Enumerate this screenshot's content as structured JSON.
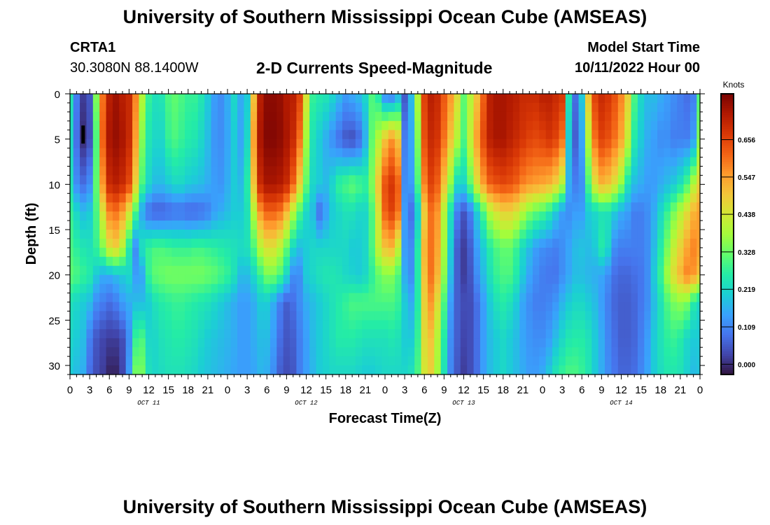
{
  "header": {
    "title": "University of Southern Mississippi Ocean Cube (AMSEAS)",
    "station_id": "CRTA1",
    "station_coords": "30.3080N  88.1400W",
    "plot_title": "2-D Currents Speed-Magnitude",
    "model_start_label": "Model Start Time",
    "model_start_value": "10/11/2022 Hour 00"
  },
  "footer": {
    "title": "University of Southern Mississippi Ocean Cube (AMSEAS)"
  },
  "chart_data": {
    "type": "heatmap",
    "title": "2-D Currents Speed-Magnitude",
    "xlabel": "Forecast Time(Z)",
    "ylabel": "Depth (ft)",
    "x_tick_labels": [
      "0",
      "3",
      "6",
      "9",
      "12",
      "15",
      "18",
      "21",
      "0",
      "3",
      "6",
      "9",
      "12",
      "15",
      "18",
      "21",
      "0",
      "3",
      "6",
      "9",
      "12",
      "15",
      "18",
      "21",
      "0",
      "3",
      "6",
      "9",
      "12",
      "15",
      "18",
      "21",
      "0"
    ],
    "x_day_labels": [
      "OCT 11",
      "OCT 12",
      "OCT 13",
      "OCT 14"
    ],
    "xlim_hours": [
      0,
      96
    ],
    "y_tick_labels": [
      "0",
      "5",
      "10",
      "15",
      "20",
      "25",
      "30"
    ],
    "ylim_ft": [
      0,
      31
    ],
    "y_inverted": true,
    "colorbar": {
      "unit_label": "Knots",
      "tick_labels": [
        "0.656",
        "0.547",
        "0.438",
        "0.328",
        "0.219",
        "0.109",
        "0.000"
      ],
      "range": [
        -0.03,
        0.79
      ],
      "colors": [
        "#30123b",
        "#4145ab",
        "#4675ed",
        "#39a2fc",
        "#1bcfd4",
        "#24eca6",
        "#61fc6c",
        "#a4fc3b",
        "#d1e834",
        "#f3c63a",
        "#fe9b2d",
        "#f36315",
        "#d93806",
        "#b11901",
        "#7a0403"
      ]
    },
    "speed_knots": {
      "hours": [
        0,
        1,
        2,
        3,
        4,
        5,
        6,
        7,
        8,
        9,
        10,
        11,
        12,
        13,
        14,
        15,
        16,
        17,
        18,
        19,
        20,
        21,
        22,
        23,
        24,
        25,
        26,
        27,
        28,
        29,
        30,
        31,
        32,
        33,
        34,
        35,
        36,
        37,
        38,
        39,
        40,
        41,
        42,
        43,
        44,
        45,
        46,
        47,
        48,
        49,
        50,
        51,
        52,
        53,
        54,
        55,
        56,
        57,
        58,
        59,
        60,
        61,
        62,
        63,
        64,
        65,
        66,
        67,
        68,
        69,
        70,
        71,
        72,
        73,
        74,
        75,
        76,
        77,
        78,
        79,
        80,
        81,
        82,
        83,
        84,
        85,
        86,
        87,
        88,
        89,
        90,
        91,
        92,
        93,
        94,
        95,
        96
      ],
      "depths_ft": [
        0,
        5,
        10,
        13,
        17,
        20,
        23,
        27,
        31
      ],
      "values": [
        [
          0.25,
          0.1,
          0.02,
          0.05,
          0.35,
          0.6,
          0.72,
          0.75,
          0.72,
          0.7,
          0.58,
          0.4,
          0.28,
          0.24,
          0.25,
          0.3,
          0.32,
          0.3,
          0.28,
          0.28,
          0.25,
          0.2,
          0.14,
          0.12,
          0.16,
          0.22,
          0.16,
          0.2,
          0.5,
          0.72,
          0.77,
          0.77,
          0.76,
          0.73,
          0.72,
          0.66,
          0.45,
          0.28,
          0.26,
          0.25,
          0.22,
          0.18,
          0.14,
          0.16,
          0.18,
          0.22,
          0.3,
          0.25,
          0.1,
          0.08,
          0.15,
          0.05,
          0.18,
          0.4,
          0.66,
          0.72,
          0.7,
          0.63,
          0.56,
          0.46,
          0.32,
          0.4,
          0.5,
          0.62,
          0.72,
          0.74,
          0.74,
          0.73,
          0.72,
          0.7,
          0.7,
          0.7,
          0.72,
          0.72,
          0.7,
          0.68,
          0.25,
          0.08,
          0.2,
          0.5,
          0.66,
          0.7,
          0.68,
          0.64,
          0.58,
          0.48,
          0.3,
          0.22,
          0.18,
          0.18,
          0.16,
          0.14,
          0.12,
          0.1,
          0.08,
          0.1,
          0.3
        ],
        [
          0.22,
          0.08,
          0.0,
          0.04,
          0.3,
          0.62,
          0.74,
          0.76,
          0.74,
          0.7,
          0.55,
          0.35,
          0.25,
          0.22,
          0.22,
          0.28,
          0.3,
          0.28,
          0.26,
          0.25,
          0.22,
          0.18,
          0.13,
          0.12,
          0.15,
          0.2,
          0.15,
          0.22,
          0.55,
          0.74,
          0.78,
          0.78,
          0.77,
          0.74,
          0.7,
          0.6,
          0.38,
          0.24,
          0.2,
          0.16,
          0.12,
          0.08,
          0.05,
          0.04,
          0.07,
          0.16,
          0.32,
          0.4,
          0.5,
          0.56,
          0.5,
          0.1,
          0.15,
          0.35,
          0.64,
          0.7,
          0.68,
          0.6,
          0.5,
          0.4,
          0.3,
          0.42,
          0.55,
          0.65,
          0.72,
          0.74,
          0.74,
          0.72,
          0.7,
          0.68,
          0.66,
          0.65,
          0.66,
          0.68,
          0.66,
          0.6,
          0.2,
          0.06,
          0.15,
          0.4,
          0.6,
          0.66,
          0.64,
          0.6,
          0.54,
          0.42,
          0.26,
          0.2,
          0.16,
          0.14,
          0.12,
          0.12,
          0.1,
          0.1,
          0.1,
          0.14,
          0.35
        ],
        [
          0.24,
          0.12,
          0.08,
          0.12,
          0.32,
          0.56,
          0.7,
          0.72,
          0.7,
          0.65,
          0.48,
          0.3,
          0.22,
          0.18,
          0.18,
          0.2,
          0.22,
          0.22,
          0.2,
          0.19,
          0.18,
          0.16,
          0.14,
          0.13,
          0.16,
          0.2,
          0.18,
          0.26,
          0.5,
          0.7,
          0.74,
          0.74,
          0.73,
          0.7,
          0.62,
          0.48,
          0.32,
          0.22,
          0.2,
          0.18,
          0.22,
          0.28,
          0.3,
          0.32,
          0.3,
          0.28,
          0.35,
          0.5,
          0.64,
          0.68,
          0.62,
          0.12,
          0.14,
          0.3,
          0.58,
          0.66,
          0.62,
          0.5,
          0.36,
          0.22,
          0.22,
          0.32,
          0.45,
          0.55,
          0.62,
          0.64,
          0.65,
          0.64,
          0.62,
          0.58,
          0.56,
          0.55,
          0.54,
          0.52,
          0.48,
          0.4,
          0.16,
          0.1,
          0.12,
          0.3,
          0.45,
          0.52,
          0.5,
          0.45,
          0.36,
          0.24,
          0.18,
          0.16,
          0.14,
          0.14,
          0.16,
          0.18,
          0.2,
          0.24,
          0.3,
          0.4,
          0.48
        ],
        [
          0.28,
          0.22,
          0.18,
          0.2,
          0.3,
          0.45,
          0.58,
          0.6,
          0.55,
          0.45,
          0.3,
          0.15,
          0.08,
          0.06,
          0.06,
          0.07,
          0.08,
          0.08,
          0.07,
          0.07,
          0.08,
          0.1,
          0.14,
          0.16,
          0.18,
          0.2,
          0.2,
          0.24,
          0.4,
          0.56,
          0.62,
          0.62,
          0.6,
          0.52,
          0.4,
          0.3,
          0.22,
          0.18,
          0.08,
          0.14,
          0.2,
          0.22,
          0.24,
          0.24,
          0.22,
          0.22,
          0.3,
          0.45,
          0.62,
          0.66,
          0.6,
          0.14,
          0.08,
          0.2,
          0.48,
          0.6,
          0.56,
          0.4,
          0.24,
          0.1,
          0.05,
          0.1,
          0.2,
          0.3,
          0.4,
          0.45,
          0.48,
          0.48,
          0.45,
          0.4,
          0.35,
          0.32,
          0.3,
          0.26,
          0.2,
          0.14,
          0.12,
          0.14,
          0.14,
          0.2,
          0.22,
          0.24,
          0.24,
          0.2,
          0.16,
          0.14,
          0.1,
          0.1,
          0.12,
          0.16,
          0.22,
          0.28,
          0.34,
          0.4,
          0.46,
          0.52,
          0.55
        ],
        [
          0.3,
          0.27,
          0.25,
          0.24,
          0.28,
          0.35,
          0.45,
          0.48,
          0.4,
          0.25,
          0.12,
          0.24,
          0.28,
          0.3,
          0.3,
          0.29,
          0.28,
          0.28,
          0.28,
          0.29,
          0.29,
          0.28,
          0.27,
          0.26,
          0.25,
          0.24,
          0.23,
          0.24,
          0.3,
          0.4,
          0.45,
          0.45,
          0.4,
          0.32,
          0.22,
          0.18,
          0.2,
          0.22,
          0.22,
          0.22,
          0.22,
          0.22,
          0.22,
          0.2,
          0.2,
          0.22,
          0.3,
          0.42,
          0.5,
          0.52,
          0.42,
          0.14,
          0.12,
          0.26,
          0.52,
          0.6,
          0.54,
          0.38,
          0.2,
          0.06,
          0.02,
          0.06,
          0.14,
          0.2,
          0.26,
          0.3,
          0.32,
          0.32,
          0.28,
          0.22,
          0.18,
          0.14,
          0.12,
          0.11,
          0.1,
          0.12,
          0.15,
          0.18,
          0.19,
          0.18,
          0.2,
          0.26,
          0.22,
          0.12,
          0.1,
          0.1,
          0.1,
          0.1,
          0.12,
          0.18,
          0.26,
          0.34,
          0.42,
          0.48,
          0.54,
          0.58,
          0.55
        ],
        [
          0.32,
          0.3,
          0.28,
          0.26,
          0.2,
          0.16,
          0.16,
          0.18,
          0.2,
          0.22,
          0.14,
          0.15,
          0.28,
          0.32,
          0.33,
          0.34,
          0.34,
          0.34,
          0.34,
          0.34,
          0.34,
          0.33,
          0.32,
          0.3,
          0.28,
          0.24,
          0.18,
          0.18,
          0.22,
          0.28,
          0.34,
          0.34,
          0.3,
          0.22,
          0.12,
          0.12,
          0.2,
          0.22,
          0.24,
          0.25,
          0.25,
          0.24,
          0.22,
          0.21,
          0.2,
          0.22,
          0.27,
          0.32,
          0.35,
          0.35,
          0.3,
          0.16,
          0.12,
          0.26,
          0.5,
          0.6,
          0.52,
          0.36,
          0.18,
          0.06,
          0.02,
          0.05,
          0.12,
          0.18,
          0.24,
          0.28,
          0.3,
          0.3,
          0.26,
          0.2,
          0.15,
          0.12,
          0.1,
          0.09,
          0.09,
          0.12,
          0.15,
          0.18,
          0.18,
          0.17,
          0.16,
          0.15,
          0.12,
          0.08,
          0.07,
          0.07,
          0.08,
          0.09,
          0.12,
          0.2,
          0.28,
          0.38,
          0.46,
          0.52,
          0.58,
          0.56,
          0.5
        ],
        [
          0.24,
          0.22,
          0.2,
          0.18,
          0.12,
          0.1,
          0.08,
          0.1,
          0.14,
          0.16,
          0.18,
          0.18,
          0.2,
          0.24,
          0.26,
          0.27,
          0.28,
          0.28,
          0.27,
          0.26,
          0.25,
          0.24,
          0.22,
          0.2,
          0.18,
          0.16,
          0.14,
          0.14,
          0.16,
          0.2,
          0.2,
          0.16,
          0.1,
          0.06,
          0.08,
          0.12,
          0.16,
          0.18,
          0.2,
          0.22,
          0.24,
          0.26,
          0.28,
          0.3,
          0.3,
          0.3,
          0.3,
          0.3,
          0.3,
          0.3,
          0.28,
          0.2,
          0.16,
          0.26,
          0.48,
          0.56,
          0.46,
          0.3,
          0.14,
          0.06,
          0.04,
          0.04,
          0.08,
          0.14,
          0.2,
          0.24,
          0.26,
          0.24,
          0.2,
          0.15,
          0.12,
          0.1,
          0.1,
          0.11,
          0.13,
          0.17,
          0.2,
          0.22,
          0.22,
          0.2,
          0.18,
          0.14,
          0.1,
          0.07,
          0.06,
          0.06,
          0.07,
          0.09,
          0.12,
          0.18,
          0.24,
          0.3,
          0.34,
          0.36,
          0.34,
          0.26,
          0.22
        ],
        [
          0.22,
          0.2,
          0.18,
          0.1,
          0.05,
          0.03,
          0.02,
          0.02,
          0.04,
          0.12,
          0.28,
          0.3,
          0.22,
          0.22,
          0.24,
          0.25,
          0.26,
          0.26,
          0.25,
          0.24,
          0.22,
          0.2,
          0.19,
          0.18,
          0.17,
          0.16,
          0.14,
          0.14,
          0.16,
          0.18,
          0.18,
          0.14,
          0.08,
          0.05,
          0.06,
          0.1,
          0.14,
          0.18,
          0.2,
          0.22,
          0.24,
          0.26,
          0.26,
          0.26,
          0.25,
          0.24,
          0.24,
          0.24,
          0.24,
          0.25,
          0.24,
          0.2,
          0.2,
          0.28,
          0.46,
          0.5,
          0.4,
          0.26,
          0.12,
          0.06,
          0.03,
          0.04,
          0.08,
          0.14,
          0.18,
          0.2,
          0.22,
          0.2,
          0.18,
          0.15,
          0.13,
          0.12,
          0.12,
          0.14,
          0.18,
          0.22,
          0.25,
          0.26,
          0.26,
          0.24,
          0.2,
          0.16,
          0.11,
          0.08,
          0.06,
          0.06,
          0.07,
          0.1,
          0.14,
          0.2,
          0.24,
          0.27,
          0.28,
          0.26,
          0.22,
          0.2,
          0.2
        ],
        [
          0.2,
          0.18,
          0.16,
          0.08,
          0.04,
          0.02,
          -0.01,
          -0.01,
          0.03,
          0.14,
          0.34,
          0.34,
          0.24,
          0.22,
          0.23,
          0.24,
          0.24,
          0.24,
          0.23,
          0.22,
          0.2,
          0.19,
          0.18,
          0.17,
          0.16,
          0.15,
          0.14,
          0.14,
          0.15,
          0.17,
          0.16,
          0.12,
          0.06,
          0.04,
          0.05,
          0.1,
          0.14,
          0.17,
          0.2,
          0.21,
          0.22,
          0.22,
          0.22,
          0.22,
          0.21,
          0.2,
          0.2,
          0.21,
          0.22,
          0.22,
          0.22,
          0.22,
          0.24,
          0.3,
          0.44,
          0.48,
          0.38,
          0.24,
          0.11,
          0.05,
          0.02,
          0.04,
          0.08,
          0.14,
          0.18,
          0.2,
          0.22,
          0.2,
          0.18,
          0.16,
          0.14,
          0.14,
          0.16,
          0.2,
          0.25,
          0.28,
          0.3,
          0.3,
          0.28,
          0.25,
          0.2,
          0.16,
          0.12,
          0.09,
          0.07,
          0.07,
          0.08,
          0.11,
          0.15,
          0.2,
          0.23,
          0.25,
          0.25,
          0.24,
          0.21,
          0.18,
          0.19
        ]
      ]
    },
    "annotations": [
      {
        "type": "marker",
        "hour": 2,
        "depth_ft_from": 3.5,
        "depth_ft_to": 5.5
      }
    ]
  }
}
